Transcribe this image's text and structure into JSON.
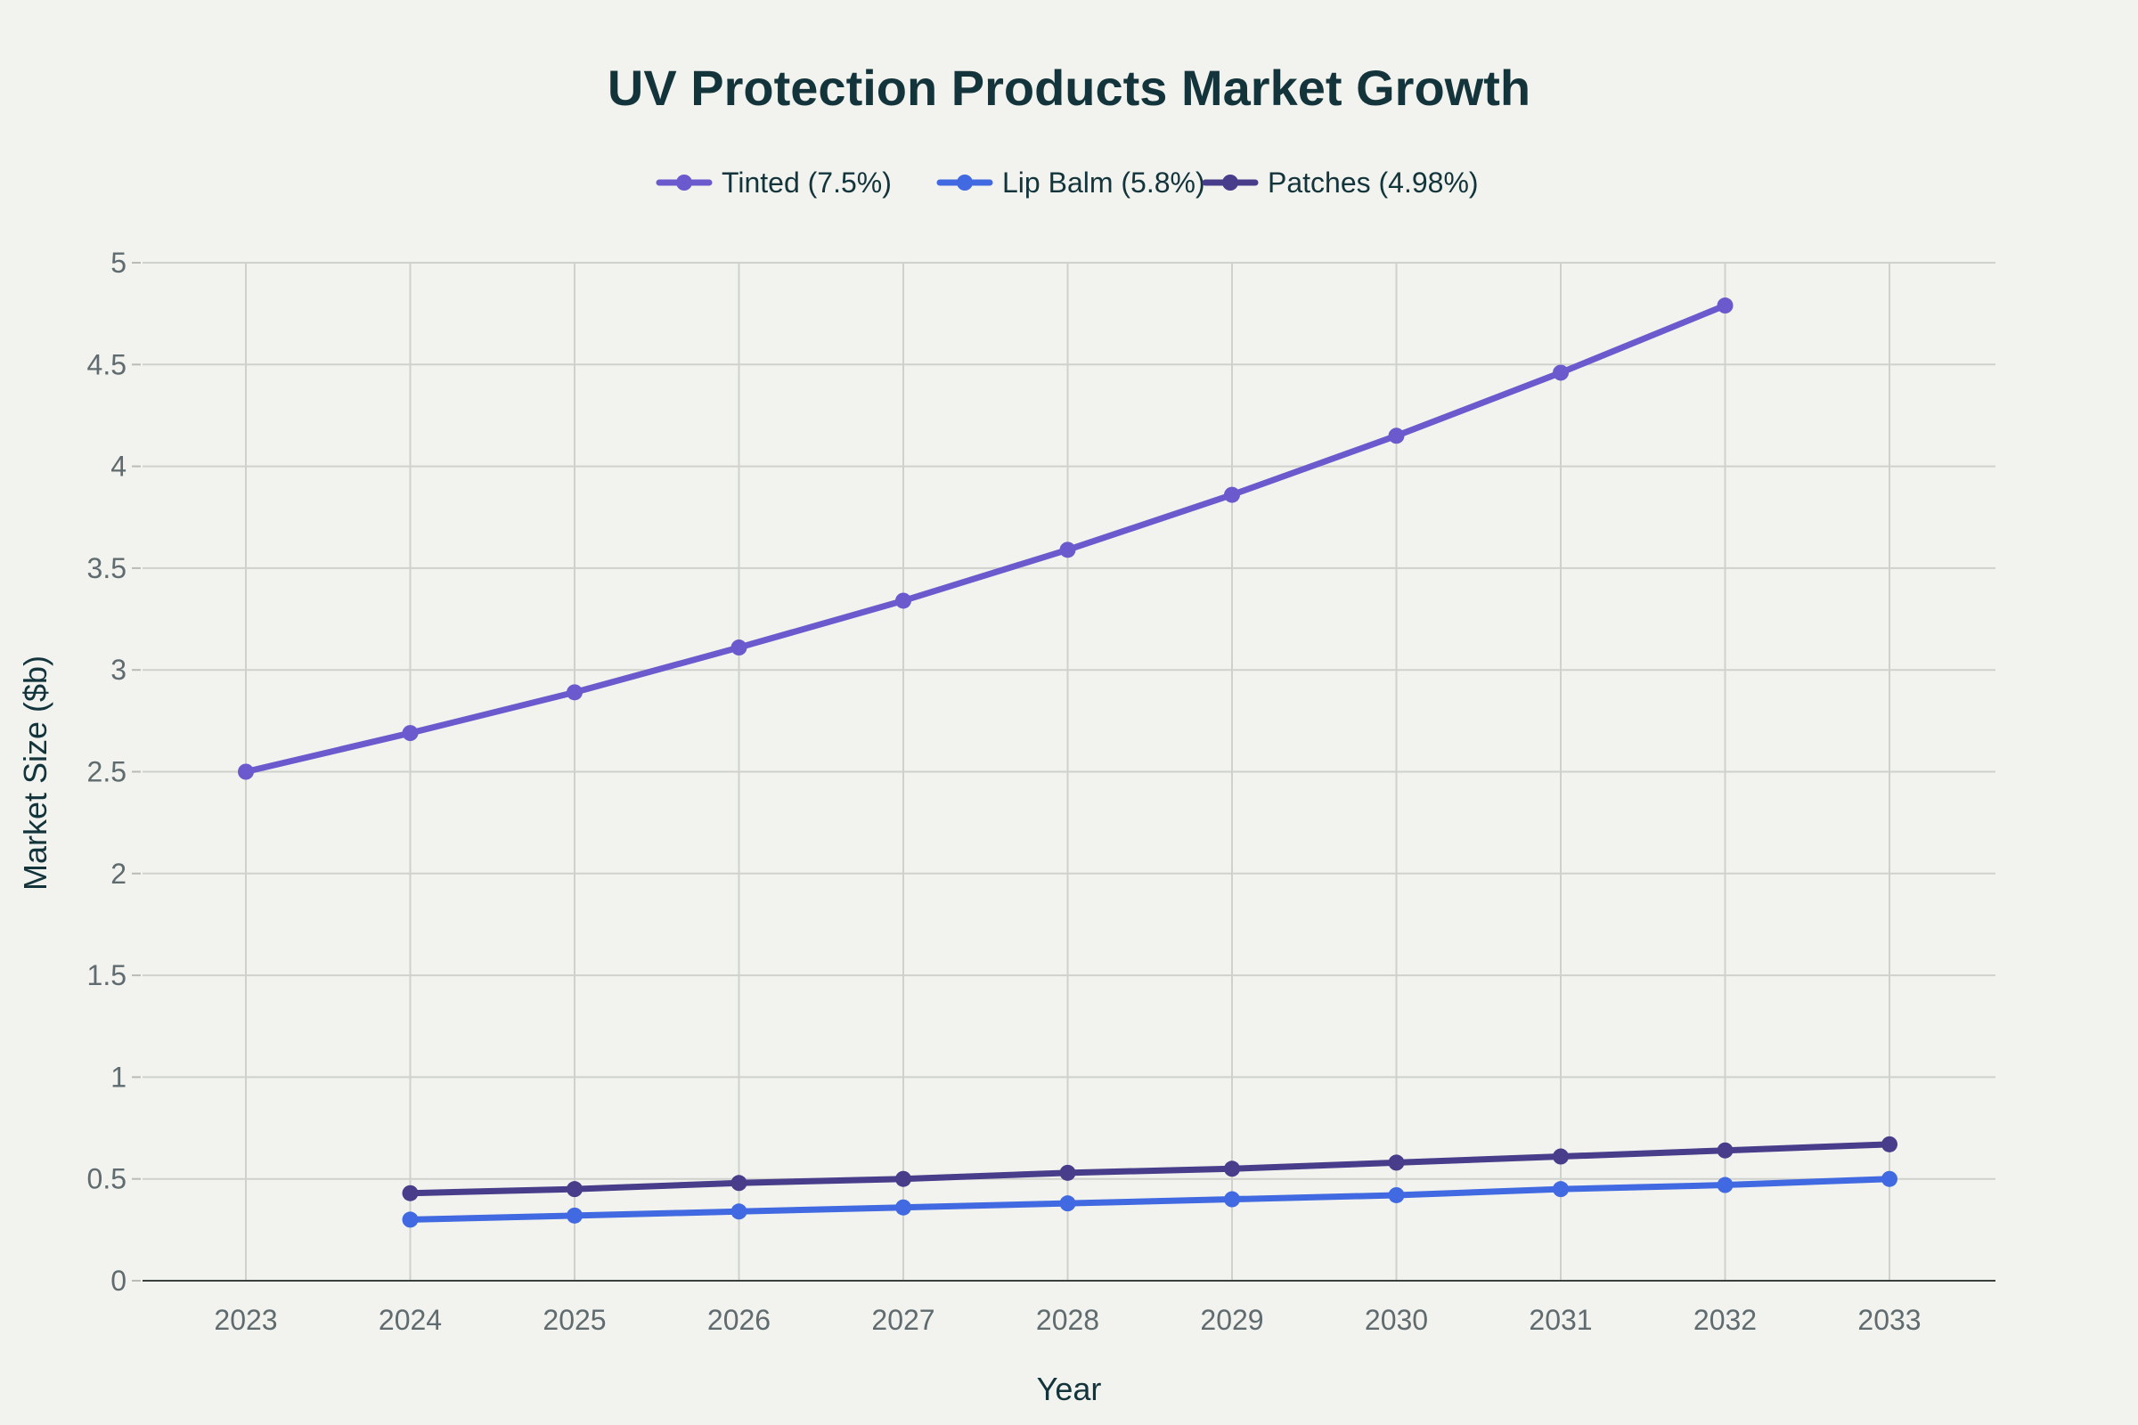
{
  "chart_data": {
    "type": "line",
    "title": "UV Protection Products Market Growth",
    "xlabel": "Year",
    "ylabel": "Market Size ($b)",
    "ylim": [
      0,
      5
    ],
    "yticks": [
      "0",
      "0.5",
      "1",
      "1.5",
      "2",
      "2.5",
      "3",
      "3.5",
      "4",
      "4.5",
      "5"
    ],
    "x": [
      "2023",
      "2024",
      "2025",
      "2026",
      "2027",
      "2028",
      "2029",
      "2030",
      "2031",
      "2032",
      "2033"
    ],
    "grid": true,
    "legend_position": "top-center",
    "series": [
      {
        "name": "Tinted (7.5%)",
        "color": "#6a5acd",
        "x": [
          "2023",
          "2024",
          "2025",
          "2026",
          "2027",
          "2028",
          "2029",
          "2030",
          "2031",
          "2032"
        ],
        "values": [
          2.5,
          2.69,
          2.89,
          3.11,
          3.34,
          3.59,
          3.86,
          4.15,
          4.46,
          4.79
        ]
      },
      {
        "name": "Lip Balm (5.8%)",
        "color": "#4169e1",
        "x": [
          "2024",
          "2025",
          "2026",
          "2027",
          "2028",
          "2029",
          "2030",
          "2031",
          "2032",
          "2033"
        ],
        "values": [
          0.3,
          0.32,
          0.34,
          0.36,
          0.38,
          0.4,
          0.42,
          0.45,
          0.47,
          0.5
        ]
      },
      {
        "name": "Patches (4.98%)",
        "color": "#483d8b",
        "x": [
          "2024",
          "2025",
          "2026",
          "2027",
          "2028",
          "2029",
          "2030",
          "2031",
          "2032",
          "2033"
        ],
        "values": [
          0.43,
          0.45,
          0.48,
          0.5,
          0.53,
          0.55,
          0.58,
          0.61,
          0.64,
          0.67
        ]
      }
    ]
  }
}
